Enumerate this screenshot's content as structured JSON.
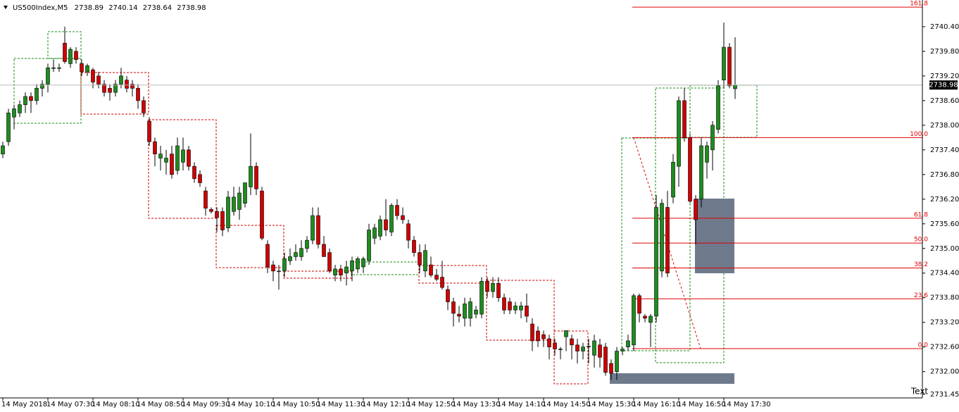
{
  "chart_data": {
    "type": "candlestick",
    "symbol": "US500Index,M5",
    "annotation": "Text",
    "up_color": "#1e8c1e",
    "down_color": "#d00000",
    "categories": [
      "14 May 2018",
      null,
      null,
      null,
      null,
      null,
      null,
      null,
      "14 May 07:30",
      null,
      null,
      null,
      null,
      null,
      null,
      null,
      "14 May 08:10",
      null,
      null,
      null,
      null,
      null,
      null,
      null,
      "14 May 08:50",
      null,
      null,
      null,
      null,
      null,
      null,
      null,
      "14 May 09:30",
      null,
      null,
      null,
      null,
      null,
      null,
      null,
      "14 May 10:10",
      null,
      null,
      null,
      null,
      null,
      null,
      null,
      "14 May 10:50",
      null,
      null,
      null,
      null,
      null,
      null,
      null,
      "14 May 11:30",
      null,
      null,
      null,
      null,
      null,
      null,
      null,
      "14 May 12:10",
      null,
      null,
      null,
      null,
      null,
      null,
      null,
      "14 May 12:50",
      null,
      null,
      null,
      null,
      null,
      null,
      null,
      "14 May 13:30",
      null,
      null,
      null,
      null,
      null,
      null,
      null,
      "14 May 14:10",
      null,
      null,
      null,
      null,
      null,
      null,
      null,
      "14 May 14:50",
      null,
      null,
      null,
      null,
      null,
      null,
      null,
      "14 May 15:30",
      null,
      null,
      null,
      null,
      null,
      null,
      null,
      "14 May 16:10",
      null,
      null,
      null,
      null,
      null,
      null,
      null,
      "14 May 16:50",
      null,
      null,
      null,
      null,
      null,
      null,
      null,
      "14 May 17:30",
      null,
      null
    ],
    "open": [
      2737.3,
      2737.6,
      2738.2,
      2738.3,
      2738.5,
      2738.7,
      2738.6,
      2738.9,
      2739.0,
      2739.4,
      2739.4,
      2740.0,
      2739.5,
      2739.8,
      2739.5,
      2739.3,
      2739.35,
      2739.2,
      2739.0,
      2738.9,
      2738.8,
      2739.0,
      2739.1,
      2739.0,
      2738.9,
      2738.6,
      2738.1,
      2737.6,
      2737.2,
      2737.1,
      2737.3,
      2736.9,
      2737.1,
      2737.4,
      2737.0,
      2736.8,
      2736.4,
      2735.95,
      2735.9,
      2735.9,
      2735.5,
      2735.9,
      2735.95,
      2736.1,
      2736.5,
      2737.0,
      2736.4,
      2735.1,
      2734.6,
      2734.45,
      2734.45,
      2734.7,
      2734.8,
      2734.8,
      2735.0,
      2735.2,
      2735.8,
      2735.1,
      2734.9,
      2734.35,
      2734.5,
      2734.4,
      2734.45,
      2734.5,
      2734.55,
      2734.7,
      2735.25,
      2735.3,
      2735.7,
      2735.4,
      2736.05,
      2735.8,
      2735.6,
      2735.2,
      2734.9,
      2734.45,
      2734.6,
      2734.35,
      2734.3,
      2734.0,
      2733.7,
      2733.4,
      2733.3,
      2733.3,
      2733.4,
      2733.4,
      2734.2,
      2733.95,
      2734.15,
      2733.8,
      2733.7,
      2733.5,
      2733.5,
      2733.6,
      2733.16,
      2732.99,
      2732.9,
      2732.8,
      2732.7,
      2732.55,
      2732.85,
      2732.8,
      2732.65,
      2732.5,
      2732.62,
      2732.4,
      2732.65,
      2732.6,
      2732.2,
      2732.0,
      2732.5,
      2732.6,
      2732.65,
      2733.85,
      2733.35,
      2733.2,
      2733.35,
      2734.45,
      2736.0,
      2736.25,
      2737.0,
      2738.6,
      2737.7,
      2736.2,
      2736.2,
      2737.1,
      2737.4,
      2737.9,
      2739.1,
      2739.9,
      2738.89
    ],
    "high": [
      2737.6,
      2738.4,
      2738.5,
      2738.6,
      2738.8,
      2738.8,
      2739.0,
      2739.1,
      2739.5,
      2739.6,
      2739.5,
      2740.4,
      2739.9,
      2739.9,
      2739.6,
      2739.5,
      2739.4,
      2739.3,
      2739.1,
      2739.0,
      2739.1,
      2739.4,
      2739.2,
      2739.1,
      2739.0,
      2738.7,
      2738.2,
      2737.7,
      2737.5,
      2737.4,
      2737.5,
      2737.7,
      2737.7,
      2737.5,
      2737.1,
      2736.9,
      2736.5,
      2736.0,
      2736.0,
      2736.0,
      2736.4,
      2736.5,
      2736.5,
      2736.6,
      2737.8,
      2737.1,
      2736.5,
      2735.2,
      2734.7,
      2734.6,
      2734.9,
      2735.0,
      2735.1,
      2735.2,
      2735.3,
      2736.0,
      2736.0,
      2735.3,
      2735.0,
      2734.6,
      2734.6,
      2734.7,
      2734.8,
      2734.8,
      2734.8,
      2735.6,
      2735.6,
      2735.8,
      2736.2,
      2736.1,
      2736.2,
      2736.0,
      2735.7,
      2735.3,
      2735.1,
      2735.1,
      2734.8,
      2734.5,
      2734.7,
      2734.1,
      2733.8,
      2733.6,
      2733.8,
      2733.8,
      2733.6,
      2734.3,
      2734.3,
      2734.3,
      2734.3,
      2733.9,
      2733.8,
      2733.7,
      2733.7,
      2733.9,
      2733.3,
      2733.1,
      2733.0,
      2732.9,
      2732.8,
      2732.6,
      2733.0,
      2732.9,
      2732.8,
      2732.7,
      2732.8,
      2732.9,
      2732.8,
      2732.7,
      2732.3,
      2732.6,
      2732.6,
      2732.9,
      2733.9,
      2733.9,
      2733.4,
      2733.4,
      2736.3,
      2736.2,
      2736.4,
      2737.3,
      2738.7,
      2738.9,
      2737.8,
      2736.3,
      2737.7,
      2737.6,
      2738.1,
      2739.1,
      2740.5,
      2740.0,
      2740.14
    ],
    "low": [
      2737.2,
      2737.5,
      2737.9,
      2738.2,
      2738.3,
      2738.3,
      2738.5,
      2738.7,
      2738.8,
      2739.3,
      2739.3,
      2739.5,
      2739.4,
      2739.5,
      2739.2,
      2739.2,
      2738.9,
      2738.9,
      2738.7,
      2738.6,
      2738.7,
      2738.9,
      2738.8,
      2738.7,
      2738.4,
      2738.2,
      2737.5,
      2737.0,
      2736.9,
      2736.8,
      2736.7,
      2736.8,
      2736.9,
      2736.9,
      2736.6,
      2736.5,
      2735.8,
      2735.85,
      2735.4,
      2735.3,
      2735.4,
      2735.8,
      2735.7,
      2736.0,
      2736.3,
      2736.3,
      2735.2,
      2734.4,
      2734.2,
      2734.0,
      2734.3,
      2734.6,
      2734.7,
      2734.7,
      2734.9,
      2735.1,
      2735.0,
      2734.8,
      2734.4,
      2734.2,
      2734.2,
      2734.1,
      2734.2,
      2734.4,
      2734.4,
      2734.6,
      2735.1,
      2735.2,
      2735.3,
      2735.3,
      2735.7,
      2735.6,
      2735.0,
      2734.8,
      2734.4,
      2734.3,
      2734.3,
      2734.2,
      2734.0,
      2733.5,
      2733.1,
      2733.2,
      2733.1,
      2733.1,
      2733.3,
      2733.3,
      2733.8,
      2733.8,
      2733.7,
      2733.4,
      2733.4,
      2733.4,
      2733.3,
      2733.2,
      2732.5,
      2732.6,
      2732.6,
      2732.3,
      2732.4,
      2732.3,
      2732.5,
      2732.3,
      2732.2,
      2732.3,
      2732.2,
      2732.1,
      2732.1,
      2731.9,
      2731.8,
      2731.8,
      2732.4,
      2732.5,
      2732.5,
      2733.2,
      2733.2,
      2732.6,
      2733.2,
      2734.3,
      2734.3,
      2736.1,
      2736.5,
      2737.6,
      2736.1,
      2735.1,
      2736.0,
      2736.7,
      2736.9,
      2737.8,
      2738.9,
      2738.9,
      2738.64
    ],
    "close": [
      2737.5,
      2738.3,
      2738.4,
      2738.5,
      2738.7,
      2738.6,
      2738.9,
      2739.0,
      2739.4,
      2739.4,
      2739.4,
      2739.55,
      2739.85,
      2739.6,
      2739.3,
      2739.45,
      2739.05,
      2739.0,
      2738.8,
      2738.8,
      2739.0,
      2739.2,
      2738.9,
      2738.9,
      2738.6,
      2738.3,
      2737.6,
      2737.3,
      2737.3,
      2737.2,
      2736.8,
      2737.5,
      2737.4,
      2737.0,
      2736.7,
      2736.6,
      2735.98,
      2735.9,
      2735.75,
      2735.45,
      2736.25,
      2736.25,
      2736.35,
      2736.6,
      2737.0,
      2736.45,
      2735.25,
      2734.55,
      2734.45,
      2734.45,
      2734.75,
      2734.8,
      2734.9,
      2735.0,
      2735.2,
      2735.8,
      2735.1,
      2734.8,
      2734.45,
      2734.5,
      2734.35,
      2734.55,
      2734.7,
      2734.75,
      2734.75,
      2735.45,
      2735.5,
      2735.7,
      2735.45,
      2736.05,
      2735.8,
      2735.7,
      2735.2,
      2734.9,
      2734.6,
      2734.95,
      2734.35,
      2734.25,
      2734.05,
      2733.7,
      2733.42,
      2733.35,
      2733.65,
      2733.7,
      2733.5,
      2734.2,
      2733.95,
      2734.15,
      2733.8,
      2733.5,
      2733.5,
      2733.6,
      2733.6,
      2733.35,
      2732.75,
      2732.75,
      2732.8,
      2732.6,
      2732.55,
      2732.55,
      2733.0,
      2732.65,
      2732.5,
      2732.6,
      2732.62,
      2732.75,
      2732.35,
      2731.98,
      2731.96,
      2732.5,
      2732.55,
      2732.75,
      2733.85,
      2733.42,
      2733.3,
      2733.35,
      2736.0,
      2736.1,
      2734.4,
      2737.1,
      2738.6,
      2737.7,
      2736.15,
      2735.7,
      2737.5,
      2737.5,
      2738.0,
      2738.96,
      2739.9,
      2738.96,
      2738.98
    ],
    "ylim": [
      2731.36,
      2741.05
    ],
    "yticks": [
      {
        "value": 2740.4,
        "label": "2740.40"
      },
      {
        "value": 2739.8,
        "label": "2739.80"
      },
      {
        "value": 2739.2,
        "label": "2739.20"
      },
      {
        "value": 2738.6,
        "label": "2738.60"
      },
      {
        "value": 2738.0,
        "label": "2738.00"
      },
      {
        "value": 2737.4,
        "label": "2737.40"
      },
      {
        "value": 2736.8,
        "label": "2736.80"
      },
      {
        "value": 2736.2,
        "label": "2736.20"
      },
      {
        "value": 2735.6,
        "label": "2735.60"
      },
      {
        "value": 2735.0,
        "label": "2735.00"
      },
      {
        "value": 2734.4,
        "label": "2734.40"
      },
      {
        "value": 2733.8,
        "label": "2733.80"
      },
      {
        "value": 2733.2,
        "label": "2733.20"
      },
      {
        "value": 2732.6,
        "label": "2732.60"
      },
      {
        "value": 2732.0,
        "label": "2732.00"
      },
      2731.45
    ],
    "fibonacci": {
      "low": 2732.56,
      "high": 2737.7,
      "color": "#e00000",
      "levels": [
        161.8,
        {
          "value": 100,
          "label": "100.0"
        },
        61.8,
        {
          "value": 50,
          "label": "50.0"
        },
        38.2,
        23.6,
        {
          "value": 0,
          "label": "0.0"
        }
      ]
    }
  }
}
